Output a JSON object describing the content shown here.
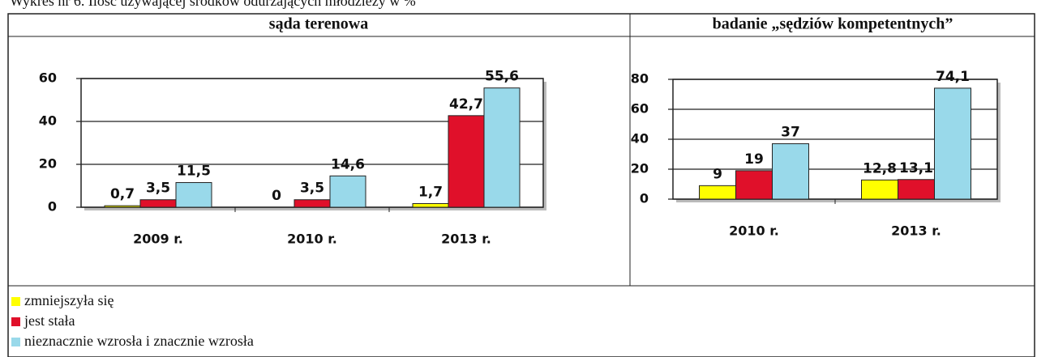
{
  "caption": "Wykres nr 6. Ilość używającej środków odurzających młodzieży w %",
  "legend": [
    {
      "name": "zmniejszyła się",
      "color": "#ffff00"
    },
    {
      "name": "jest stała",
      "color": "#e0102a"
    },
    {
      "name": "nieznacznie wzrosła i znacznie wzrosła",
      "color": "#99d9ea"
    }
  ],
  "chart_data": [
    {
      "type": "bar",
      "title": "sąda terenowa",
      "categories": [
        "2009 r.",
        "2010 r.",
        "2013 r."
      ],
      "series": [
        {
          "values": [
            0.7,
            0,
            1.7
          ],
          "value_labels": [
            "0,7",
            "0",
            "1,7"
          ]
        },
        {
          "values": [
            3.5,
            3.5,
            42.7
          ],
          "value_labels": [
            "3,5",
            "3,5",
            "42,7"
          ]
        },
        {
          "values": [
            11.5,
            14.6,
            55.6
          ],
          "value_labels": [
            "11,5",
            "14,6",
            "55,6"
          ]
        }
      ],
      "ylim": [
        0,
        60
      ],
      "yticks": [
        0,
        20,
        40,
        60
      ]
    },
    {
      "type": "bar",
      "title": "badanie „sędziów kompetentnych”",
      "categories": [
        "2010 r.",
        "2013 r."
      ],
      "series": [
        {
          "values": [
            9,
            12.8
          ],
          "value_labels": [
            "9",
            "12,8"
          ]
        },
        {
          "values": [
            19,
            13.1
          ],
          "value_labels": [
            "19",
            "13,1"
          ]
        },
        {
          "values": [
            37,
            74.1
          ],
          "value_labels": [
            "37",
            "74,1"
          ]
        }
      ],
      "ylim": [
        0,
        80
      ],
      "yticks": [
        0,
        20,
        40,
        60,
        80
      ]
    }
  ]
}
